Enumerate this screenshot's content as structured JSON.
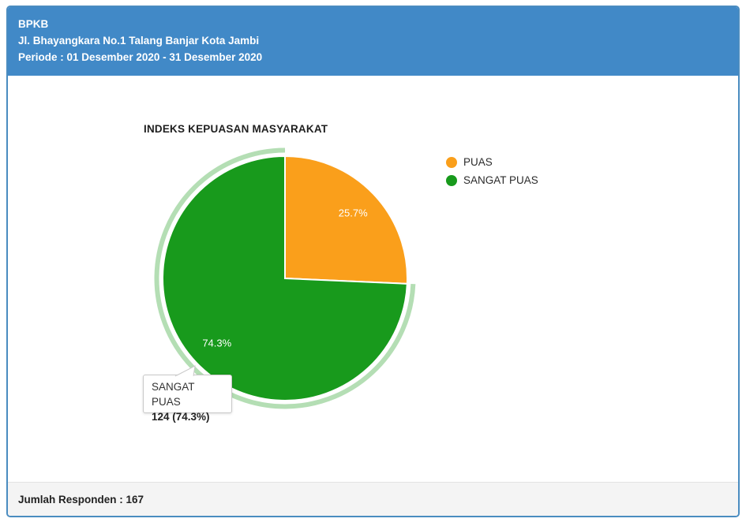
{
  "header": {
    "title": "BPKB",
    "address": "Jl. Bhayangkara No.1 Talang Banjar Kota Jambi",
    "period": "Periode : 01 Desember 2020 - 31 Desember 2020"
  },
  "chart_data": {
    "type": "pie",
    "title": "INDEKS KEPUASAN MASYARAKAT",
    "legend_position": "right",
    "start_angle_deg": -90,
    "slices": [
      {
        "label": "PUAS",
        "percent": 25.7,
        "percent_label": "25.7%",
        "color": "#fa9f1b",
        "selected": false
      },
      {
        "label": "SANGAT PUAS",
        "percent": 74.3,
        "percent_label": "74.3%",
        "color": "#189a1c",
        "selected": true,
        "count": 124
      }
    ],
    "selected_halo_color": "#b4deb4",
    "slice_border_color": "#ffffff"
  },
  "tooltip": {
    "label": "SANGAT PUAS",
    "value": "124 (74.3%)"
  },
  "footer": {
    "respondents": "Jumlah Responden : 167"
  },
  "colors": {
    "header_bg": "#4189c7",
    "panel_border": "#4a8cc0",
    "footer_bg": "#f4f4f4"
  }
}
